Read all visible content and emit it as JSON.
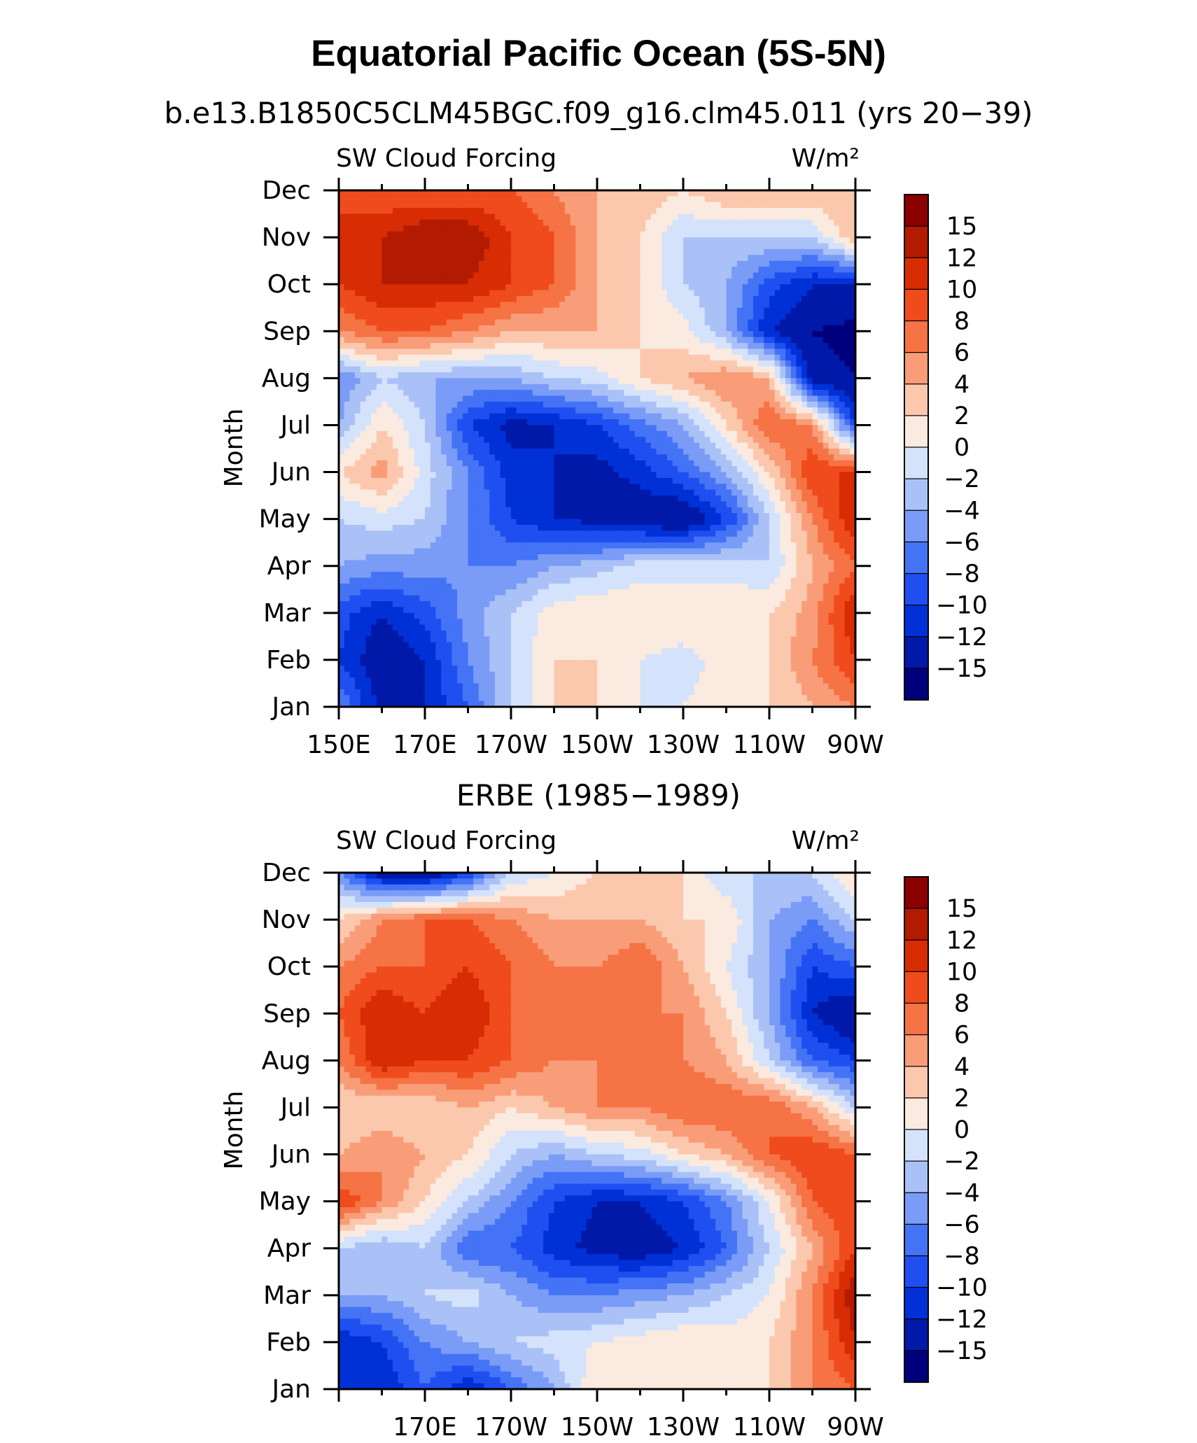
{
  "title": "Equatorial Pacific Ocean (5S-5N)",
  "colors": {
    "levels": [
      "#00007d",
      "#0019a8",
      "#0031d6",
      "#1f4ff0",
      "#4573f5",
      "#7a9cf7",
      "#aac1f8",
      "#d4e3fb",
      "#fbeae0",
      "#fbc8ae",
      "#f99d78",
      "#f57345",
      "#f04b1c",
      "#d82c04",
      "#b21b00",
      "#8b0000"
    ]
  },
  "chart_data": [
    {
      "type": "heatmap",
      "subtitle": "b.e13.B1850C5CLM45BGC.f09_g16.clm45.011 (yrs 20−39)",
      "left_label": "SW Cloud Forcing",
      "right_label": "W/m²",
      "ylabel": "Month",
      "xlabel": "",
      "x_tick_labels": [
        "150E",
        "170E",
        "170W",
        "150W",
        "130W",
        "110W",
        "90W"
      ],
      "y_tick_labels": [
        "Jan",
        "Feb",
        "Mar",
        "Apr",
        "May",
        "Jun",
        "Jul",
        "Aug",
        "Sep",
        "Oct",
        "Nov",
        "Dec"
      ],
      "xlim": [
        150,
        270
      ],
      "colorbar_labels": [
        "15",
        "12",
        "10",
        "8",
        "6",
        "4",
        "2",
        "0",
        "−2",
        "−4",
        "−6",
        "−8",
        "−10",
        "−12",
        "−15"
      ],
      "levels": [
        -15,
        -12,
        -10,
        -8,
        -6,
        -4,
        -2,
        0,
        2,
        4,
        6,
        8,
        10,
        12,
        15
      ],
      "lon": [
        150,
        160,
        170,
        180,
        190,
        200,
        210,
        220,
        230,
        240,
        250,
        260,
        270
      ],
      "values": [
        [
          -6,
          -13,
          -12,
          -8,
          -2,
          2,
          2,
          0,
          0,
          1,
          2,
          4,
          6
        ],
        [
          -10,
          -14,
          -12,
          -6,
          -2,
          2,
          2,
          0,
          -1,
          1,
          2,
          6,
          10
        ],
        [
          -9,
          -12,
          -9,
          -5,
          -2,
          1,
          2,
          2,
          2,
          2,
          2,
          5,
          12
        ],
        [
          -4,
          -5,
          -5,
          -6,
          -6,
          -4,
          -3,
          -1,
          -1,
          -1,
          -2,
          4,
          8
        ],
        [
          -2,
          -1,
          -2,
          -6,
          -10,
          -12,
          -13,
          -14,
          -15,
          -10,
          -2,
          6,
          12
        ],
        [
          2,
          5,
          -1,
          -6,
          -11,
          -12,
          -13,
          -11,
          -8,
          -4,
          2,
          10,
          10
        ],
        [
          -4,
          2,
          -2,
          -10,
          -13,
          -12,
          -10,
          -7,
          -4,
          2,
          8,
          6,
          -10
        ],
        [
          -6,
          -2,
          -4,
          -4,
          -4,
          -2,
          -1,
          2,
          4,
          6,
          4,
          -14,
          -15
        ],
        [
          6,
          8,
          8,
          6,
          4,
          4,
          4,
          2,
          1,
          -4,
          -12,
          -15,
          -16
        ],
        [
          10,
          12,
          12,
          12,
          10,
          8,
          4,
          2,
          -2,
          -4,
          -9,
          -12,
          -12
        ],
        [
          12,
          12,
          14,
          14,
          10,
          8,
          4,
          2,
          -2,
          -2,
          -2,
          -2,
          4
        ],
        [
          8,
          8,
          8,
          8,
          8,
          6,
          4,
          4,
          2,
          4,
          4,
          4,
          4
        ]
      ]
    },
    {
      "type": "heatmap",
      "subtitle": "ERBE (1985−1989)",
      "left_label": "SW Cloud Forcing",
      "right_label": "W/m²",
      "ylabel": "Month",
      "xlabel": "",
      "x_tick_labels": [
        "170E",
        "170W",
        "150W",
        "130W",
        "110W",
        "90W"
      ],
      "y_tick_labels": [
        "Jan",
        "Feb",
        "Mar",
        "Apr",
        "May",
        "Jun",
        "Jul",
        "Aug",
        "Sep",
        "Oct",
        "Nov",
        "Dec"
      ],
      "xlim": [
        150,
        270
      ],
      "colorbar_labels": [
        "15",
        "12",
        "10",
        "8",
        "6",
        "4",
        "2",
        "0",
        "−2",
        "−4",
        "−6",
        "−8",
        "−10",
        "−12",
        "−15"
      ],
      "levels": [
        -15,
        -12,
        -10,
        -8,
        -6,
        -4,
        -2,
        0,
        2,
        4,
        6,
        8,
        10,
        12,
        15
      ],
      "lon": [
        150,
        160,
        170,
        180,
        190,
        200,
        210,
        220,
        230,
        240,
        250,
        260,
        270
      ],
      "values": [
        [
          -10,
          -12,
          -8,
          -12,
          -8,
          -4,
          2,
          2,
          2,
          2,
          2,
          6,
          8
        ],
        [
          -12,
          -10,
          -6,
          -4,
          -2,
          -1,
          0,
          1,
          2,
          1,
          2,
          6,
          12
        ],
        [
          -4,
          -4,
          -2,
          -1,
          -4,
          -6,
          -6,
          -5,
          -4,
          -2,
          0,
          6,
          14
        ],
        [
          -2,
          -4,
          -2,
          -8,
          -8,
          -11,
          -13,
          -14,
          -12,
          -8,
          -2,
          4,
          10
        ],
        [
          10,
          6,
          2,
          -2,
          -6,
          -10,
          -12,
          -12,
          -10,
          -6,
          0,
          8,
          10
        ],
        [
          4,
          6,
          4,
          2,
          -2,
          -4,
          -2,
          -1,
          2,
          4,
          8,
          10,
          8
        ],
        [
          2,
          2,
          2,
          4,
          2,
          4,
          6,
          6,
          8,
          8,
          8,
          4,
          -2
        ],
        [
          6,
          12,
          10,
          10,
          8,
          6,
          6,
          8,
          6,
          4,
          -2,
          -8,
          -10
        ],
        [
          8,
          12,
          10,
          12,
          8,
          6,
          6,
          6,
          6,
          2,
          -4,
          -12,
          -15
        ],
        [
          6,
          8,
          8,
          10,
          8,
          6,
          6,
          8,
          4,
          0,
          -4,
          -10,
          -8
        ],
        [
          2,
          6,
          8,
          8,
          6,
          4,
          4,
          4,
          2,
          2,
          -4,
          -6,
          -2
        ],
        [
          -6,
          -14,
          -15,
          -10,
          -2,
          0,
          2,
          2,
          2,
          -2,
          -2,
          -2,
          2
        ]
      ]
    }
  ]
}
